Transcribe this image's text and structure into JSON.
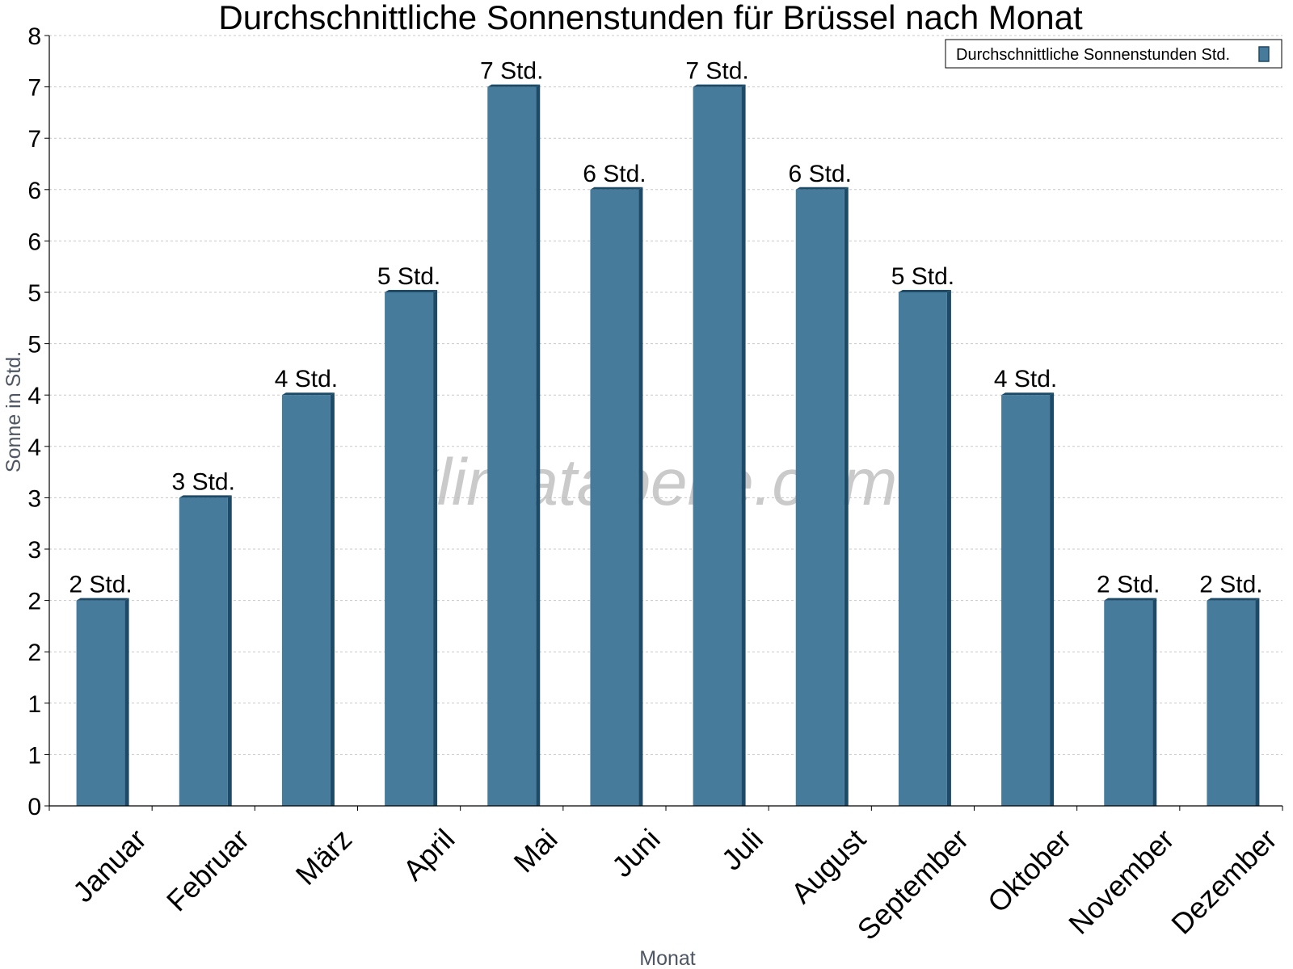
{
  "watermark": "klimatabelle.com",
  "chart_data": {
    "type": "bar",
    "title": "Durchschnittliche Sonnenstunden für Brüssel nach Monat",
    "xlabel": "Monat",
    "ylabel": "Sonne in Std.",
    "ylim": [
      0,
      7.5
    ],
    "yticks": [
      0,
      0.5,
      1,
      1.5,
      2,
      2.5,
      3,
      3.5,
      4,
      4.5,
      5,
      5.5,
      6,
      6.5,
      7,
      7.5
    ],
    "ytick_labels": [
      "0",
      "1",
      "1",
      "2",
      "2",
      "3",
      "3",
      "4",
      "4",
      "5",
      "5",
      "6",
      "6",
      "7",
      "7",
      "8"
    ],
    "grid": true,
    "legend_position": "top-right",
    "categories": [
      "Januar",
      "Februar",
      "März",
      "April",
      "Mai",
      "Juni",
      "Juli",
      "August",
      "September",
      "Oktober",
      "November",
      "Dezember"
    ],
    "series": [
      {
        "name": "Durchschnittliche Sonnenstunden Std.",
        "color": "#467b9c",
        "values": [
          2,
          3,
          4,
          5,
          7,
          6,
          7,
          6,
          5,
          4,
          2,
          2
        ],
        "data_labels": [
          "2 Std.",
          "3 Std.",
          "4 Std.",
          "5 Std.",
          "7 Std.",
          "6 Std.",
          "7 Std.",
          "6 Std.",
          "5 Std.",
          "4 Std.",
          "2 Std.",
          "2 Std."
        ]
      }
    ]
  }
}
